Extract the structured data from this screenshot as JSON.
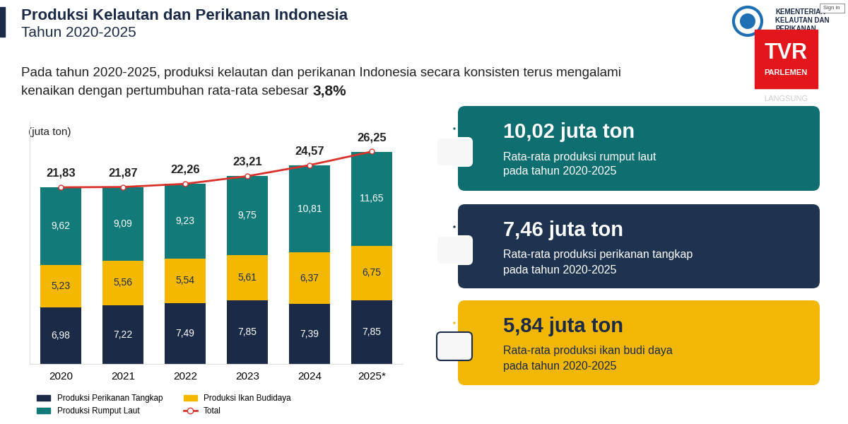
{
  "header": {
    "title": "Produksi Kelautan dan Perikanan Indonesia",
    "subtitle": "Tahun 2020-2025",
    "description": {
      "lines": [
        "Pada tahun 2020-2025, produksi kelautan dan perikanan Indonesia secara konsisten terus mengalami",
        "kenaikan dengan pertumbuhan rata-rata sebesar"
      ],
      "highlight": "3,8%"
    }
  },
  "branding": {
    "ministry": [
      "KEMENTERIAN",
      "KELAUTAN DAN",
      "PERIKANAN"
    ],
    "channel": [
      "TVR",
      "PARLEMEN"
    ],
    "live": "LANGSUNG",
    "button": "Sign in"
  },
  "chart_data": {
    "type": "bar",
    "stacked": true,
    "data_labels": true,
    "tick_labels": "x",
    "unit_label": "(juta ton)",
    "legend": "lower center",
    "categories": [
      "2020",
      "2021",
      "2022",
      "2023",
      "2024",
      "2025*"
    ],
    "ylim": [
      0,
      30
    ],
    "yticks": [],
    "series": [
      {
        "name": "Produksi Perikanan Tangkap",
        "type": "bar",
        "color": "#1b2a47",
        "values": [
          6.98,
          7.22,
          7.49,
          7.85,
          7.39,
          7.85
        ],
        "value_labels": [
          "6,98",
          "7,22",
          "7,49",
          "7,85",
          "7,39",
          "7,85"
        ]
      },
      {
        "name": "Produksi Ikan Budidaya",
        "type": "bar",
        "color": "#f5b800",
        "values": [
          5.23,
          5.56,
          5.54,
          5.61,
          6.37,
          6.75
        ],
        "value_labels": [
          "5,23",
          "5,56",
          "5,54",
          "5,61",
          "6,37",
          "6,75"
        ]
      },
      {
        "name": "Produksi Rumput Laut",
        "type": "bar",
        "color": "#137a7a",
        "values": [
          9.62,
          9.09,
          9.23,
          9.75,
          10.81,
          11.65
        ],
        "value_labels": [
          "9,62",
          "9,09",
          "9,23",
          "9,75",
          "10,81",
          "11,65"
        ]
      },
      {
        "name": "Total",
        "type": "line",
        "color": "#d9322b",
        "marker": "o",
        "values": [
          21.83,
          21.87,
          22.26,
          23.21,
          24.57,
          26.25
        ],
        "value_labels": [
          "21,83",
          "21,87",
          "22,26",
          "23,21",
          "24,57",
          "26,25"
        ]
      }
    ]
  },
  "cards": [
    {
      "value_text": "10,02 juta ton",
      "lines": [
        "Rata-rata produksi rumput laut",
        "pada tahun 2020-2025"
      ],
      "color": "#0f6e70"
    },
    {
      "value_text": "7,46 juta ton",
      "lines": [
        "Rata-rata produksi perikanan tangkap",
        "pada tahun 2020-2025"
      ],
      "color": "#1e3350"
    },
    {
      "value_text": "5,84 juta ton",
      "lines": [
        "Rata-rata produksi ikan budi daya",
        "pada tahun 2020-2025"
      ],
      "color": "#f2b705"
    }
  ]
}
